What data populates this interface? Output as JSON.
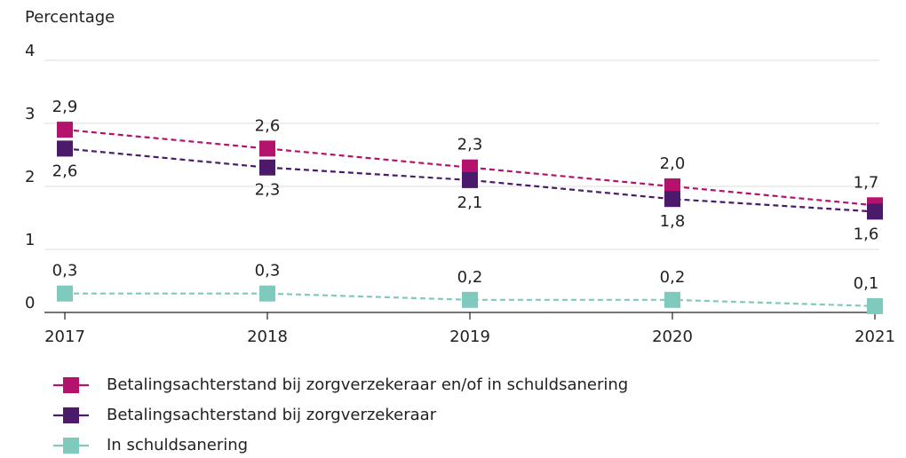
{
  "chart_data": {
    "type": "line",
    "y_label": "Percentage",
    "x": [
      2017,
      2018,
      2019,
      2020,
      2021
    ],
    "xlim": [
      2017,
      2021
    ],
    "xticks": [
      2017,
      2018,
      2019,
      2020,
      2021
    ],
    "ylim": [
      0,
      4
    ],
    "yticks": [
      0,
      1,
      2,
      3,
      4
    ],
    "grid": true,
    "series": [
      {
        "name": "Betalingsachterstand bij zorgverzekeraar en/of in schuldsanering",
        "color": "#b5126e",
        "values": [
          2.9,
          2.6,
          2.3,
          2.0,
          1.7
        ],
        "value_labels": [
          "2,9",
          "2,6",
          "2,3",
          "2,0",
          "1,7"
        ]
      },
      {
        "name": "Betalingsachterstand bij zorgverzekeraar",
        "color": "#4b1a6b",
        "values": [
          2.6,
          2.3,
          2.1,
          1.8,
          1.6
        ],
        "value_labels": [
          "2,6",
          "2,3",
          "2,1",
          "1,8",
          "1,6"
        ]
      },
      {
        "name": "In schuldsanering",
        "color": "#7fc9bd",
        "values": [
          0.3,
          0.3,
          0.2,
          0.2,
          0.1
        ],
        "value_labels": [
          "0,3",
          "0,3",
          "0,2",
          "0,2",
          "0,1"
        ]
      }
    ]
  }
}
